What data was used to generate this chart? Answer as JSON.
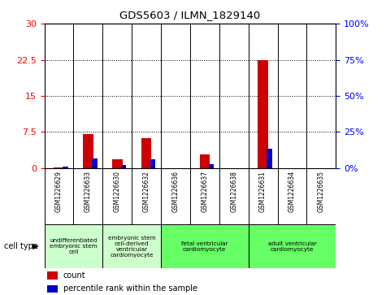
{
  "title": "GDS5603 / ILMN_1829140",
  "samples": [
    "GSM1226629",
    "GSM1226633",
    "GSM1226630",
    "GSM1226632",
    "GSM1226636",
    "GSM1226637",
    "GSM1226638",
    "GSM1226631",
    "GSM1226634",
    "GSM1226635"
  ],
  "count_values": [
    0.2,
    7.0,
    1.8,
    6.2,
    0.0,
    2.8,
    0.05,
    22.5,
    0.05,
    0.05
  ],
  "percentile_values": [
    1.0,
    6.8,
    2.0,
    6.0,
    0.0,
    3.0,
    0.0,
    13.2,
    0.0,
    0.0
  ],
  "ylim_left": [
    0,
    30
  ],
  "ylim_right": [
    0,
    100
  ],
  "yticks_left": [
    0,
    7.5,
    15,
    22.5,
    30
  ],
  "yticks_right": [
    0,
    25,
    50,
    75,
    100
  ],
  "cell_type_groups": [
    {
      "label": "undifferentiated\nembryonic stem\ncell",
      "start": 0,
      "end": 2,
      "color": "#ccffcc"
    },
    {
      "label": "embryonic stem\ncell-derived\nventricular\ncardiomyocyte",
      "start": 2,
      "end": 4,
      "color": "#ccffcc"
    },
    {
      "label": "fetal ventricular\ncardiomyocyte",
      "start": 4,
      "end": 7,
      "color": "#66ff66"
    },
    {
      "label": "adult ventricular\ncardiomyocyte",
      "start": 7,
      "end": 10,
      "color": "#66ff66"
    }
  ],
  "count_color": "#cc0000",
  "percentile_color": "#0000cc",
  "bg_color": "#ffffff",
  "sample_bg_color": "#cccccc",
  "legend_count_label": "count",
  "legend_percentile_label": "percentile rank within the sample"
}
